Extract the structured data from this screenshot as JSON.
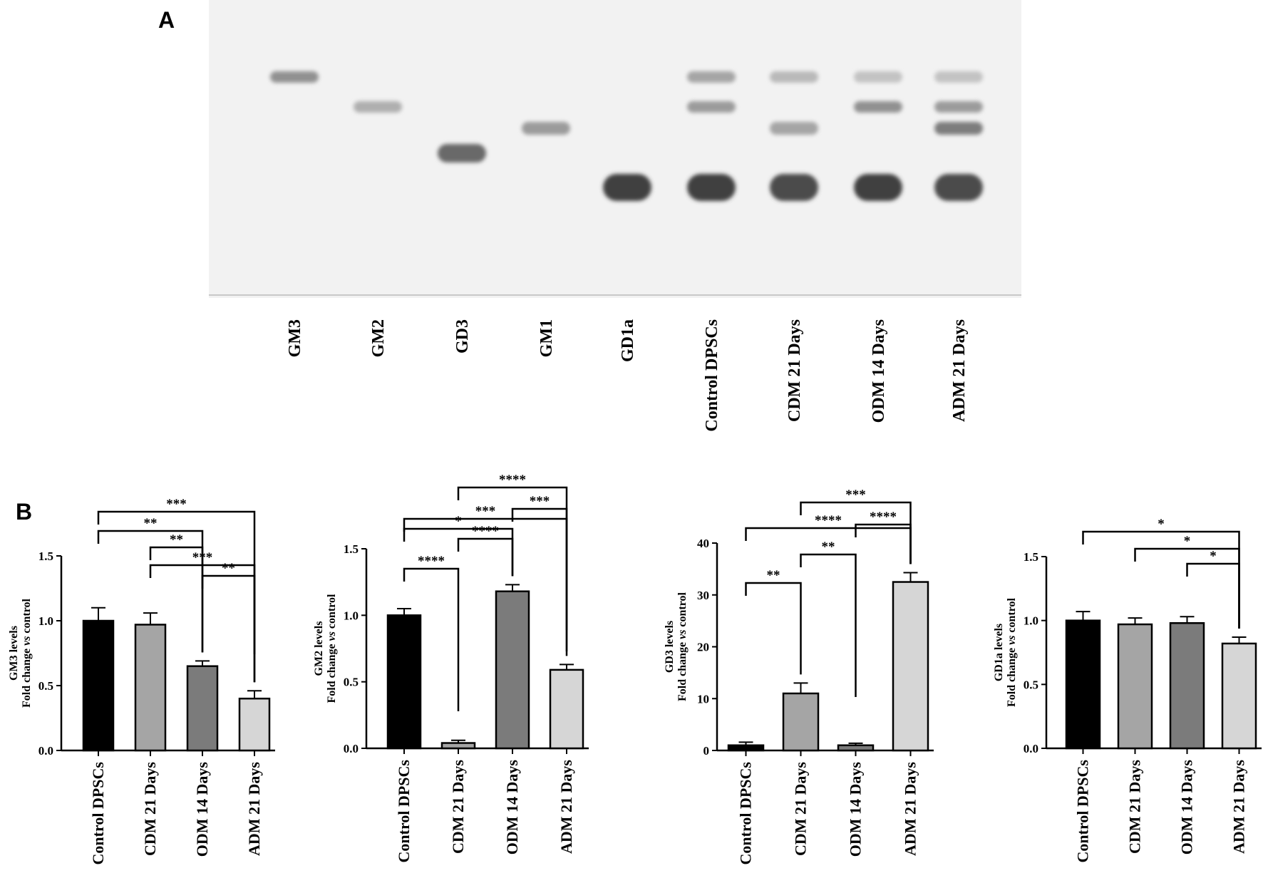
{
  "panels": {
    "a": "A",
    "b": "B"
  },
  "tlc": {
    "lanes": [
      "GM3",
      "GM2",
      "GD3",
      "GM1",
      "GD1a",
      "Control DPSCs",
      "CDM 21 Days",
      "ODM 14 Days",
      "ADM 21 Days"
    ],
    "bands": [
      {
        "lane": 0,
        "row": 1,
        "intensity": 0.55
      },
      {
        "lane": 1,
        "row": 2,
        "intensity": 0.4
      },
      {
        "lane": 2,
        "row": 4,
        "intensity": 0.75
      },
      {
        "lane": 3,
        "row": 3,
        "intensity": 0.5
      },
      {
        "lane": 4,
        "row": 5,
        "intensity": 0.95
      },
      {
        "lane": 5,
        "row": 1,
        "intensity": 0.45
      },
      {
        "lane": 5,
        "row": 2,
        "intensity": 0.5
      },
      {
        "lane": 5,
        "row": 5,
        "intensity": 0.95
      },
      {
        "lane": 6,
        "row": 1,
        "intensity": 0.35
      },
      {
        "lane": 6,
        "row": 3,
        "intensity": 0.45
      },
      {
        "lane": 6,
        "row": 5,
        "intensity": 0.9
      },
      {
        "lane": 7,
        "row": 1,
        "intensity": 0.3
      },
      {
        "lane": 7,
        "row": 2,
        "intensity": 0.55
      },
      {
        "lane": 7,
        "row": 5,
        "intensity": 0.95
      },
      {
        "lane": 8,
        "row": 1,
        "intensity": 0.3
      },
      {
        "lane": 8,
        "row": 2,
        "intensity": 0.5
      },
      {
        "lane": 8,
        "row": 3,
        "intensity": 0.65
      },
      {
        "lane": 8,
        "row": 5,
        "intensity": 0.9
      }
    ]
  },
  "chart_data": [
    {
      "type": "bar",
      "ylabel": [
        "GM3 levels",
        "Fold change vs control"
      ],
      "categories": [
        "Control DPSCs",
        "CDM 21 Days",
        "ODM 14 Days",
        "ADM 21 Days"
      ],
      "values": [
        1.0,
        0.97,
        0.65,
        0.4
      ],
      "errors": [
        0.1,
        0.09,
        0.04,
        0.06
      ],
      "colors": [
        "#000000",
        "#a5a5a5",
        "#7b7b7b",
        "#d6d6d6"
      ],
      "ylim": [
        0,
        1.5
      ],
      "yticks": [
        "0.0",
        "0.5",
        "1.0",
        "1.5"
      ],
      "comparisons": [
        {
          "a": 0,
          "b": 3,
          "label": "***"
        },
        {
          "a": 0,
          "b": 2,
          "label": "**"
        },
        {
          "a": 1,
          "b": 2,
          "label": "**"
        },
        {
          "a": 1,
          "b": 3,
          "label": "***"
        },
        {
          "a": 2,
          "b": 3,
          "label": "**"
        }
      ]
    },
    {
      "type": "bar",
      "ylabel": [
        "GM2 levels",
        "Fold change vs control"
      ],
      "categories": [
        "Control DPSCs",
        "CDM 21 Days",
        "ODM 14 Days",
        "ADM 21 Days"
      ],
      "values": [
        1.0,
        0.04,
        1.18,
        0.59
      ],
      "errors": [
        0.05,
        0.02,
        0.05,
        0.04
      ],
      "colors": [
        "#000000",
        "#a5a5a5",
        "#7b7b7b",
        "#d6d6d6"
      ],
      "ylim": [
        0,
        1.5
      ],
      "yticks": [
        "0.0",
        "0.5",
        "1.0",
        "1.5"
      ],
      "comparisons": [
        {
          "a": 1,
          "b": 3,
          "label": "****"
        },
        {
          "a": 2,
          "b": 3,
          "label": "***"
        },
        {
          "a": 0,
          "b": 3,
          "label": "***"
        },
        {
          "a": 0,
          "b": 2,
          "label": "*"
        },
        {
          "a": 1,
          "b": 2,
          "label": "****"
        },
        {
          "a": 0,
          "b": 1,
          "label": "****"
        }
      ]
    },
    {
      "type": "bar",
      "ylabel": [
        "GD3 levels",
        "Fold change vs control"
      ],
      "categories": [
        "Control DPSCs",
        "CDM 21 Days",
        "ODM 14 Days",
        "ADM 21 Days"
      ],
      "values": [
        1.0,
        11.0,
        1.0,
        32.5
      ],
      "errors": [
        0.6,
        2.0,
        0.4,
        1.8
      ],
      "colors": [
        "#000000",
        "#a5a5a5",
        "#7b7b7b",
        "#d6d6d6"
      ],
      "ylim": [
        0,
        40
      ],
      "yticks": [
        "0",
        "10",
        "20",
        "30",
        "40"
      ],
      "comparisons": [
        {
          "a": 1,
          "b": 3,
          "label": "***"
        },
        {
          "a": 2,
          "b": 3,
          "label": "****"
        },
        {
          "a": 0,
          "b": 3,
          "label": "****"
        },
        {
          "a": 1,
          "b": 2,
          "label": "**"
        },
        {
          "a": 0,
          "b": 1,
          "label": "**"
        }
      ]
    },
    {
      "type": "bar",
      "ylabel": [
        "GD1a levels",
        "Fold change vs control"
      ],
      "categories": [
        "Control DPSCs",
        "CDM 21 Days",
        "ODM 14 Days",
        "ADM 21 Days"
      ],
      "values": [
        1.0,
        0.97,
        0.98,
        0.82
      ],
      "errors": [
        0.07,
        0.05,
        0.05,
        0.05
      ],
      "colors": [
        "#000000",
        "#a5a5a5",
        "#7b7b7b",
        "#d6d6d6"
      ],
      "ylim": [
        0,
        1.5
      ],
      "yticks": [
        "0.0",
        "0.5",
        "1.0",
        "1.5"
      ],
      "comparisons": [
        {
          "a": 0,
          "b": 3,
          "label": "*"
        },
        {
          "a": 1,
          "b": 3,
          "label": "*"
        },
        {
          "a": 2,
          "b": 3,
          "label": "*"
        }
      ]
    }
  ]
}
